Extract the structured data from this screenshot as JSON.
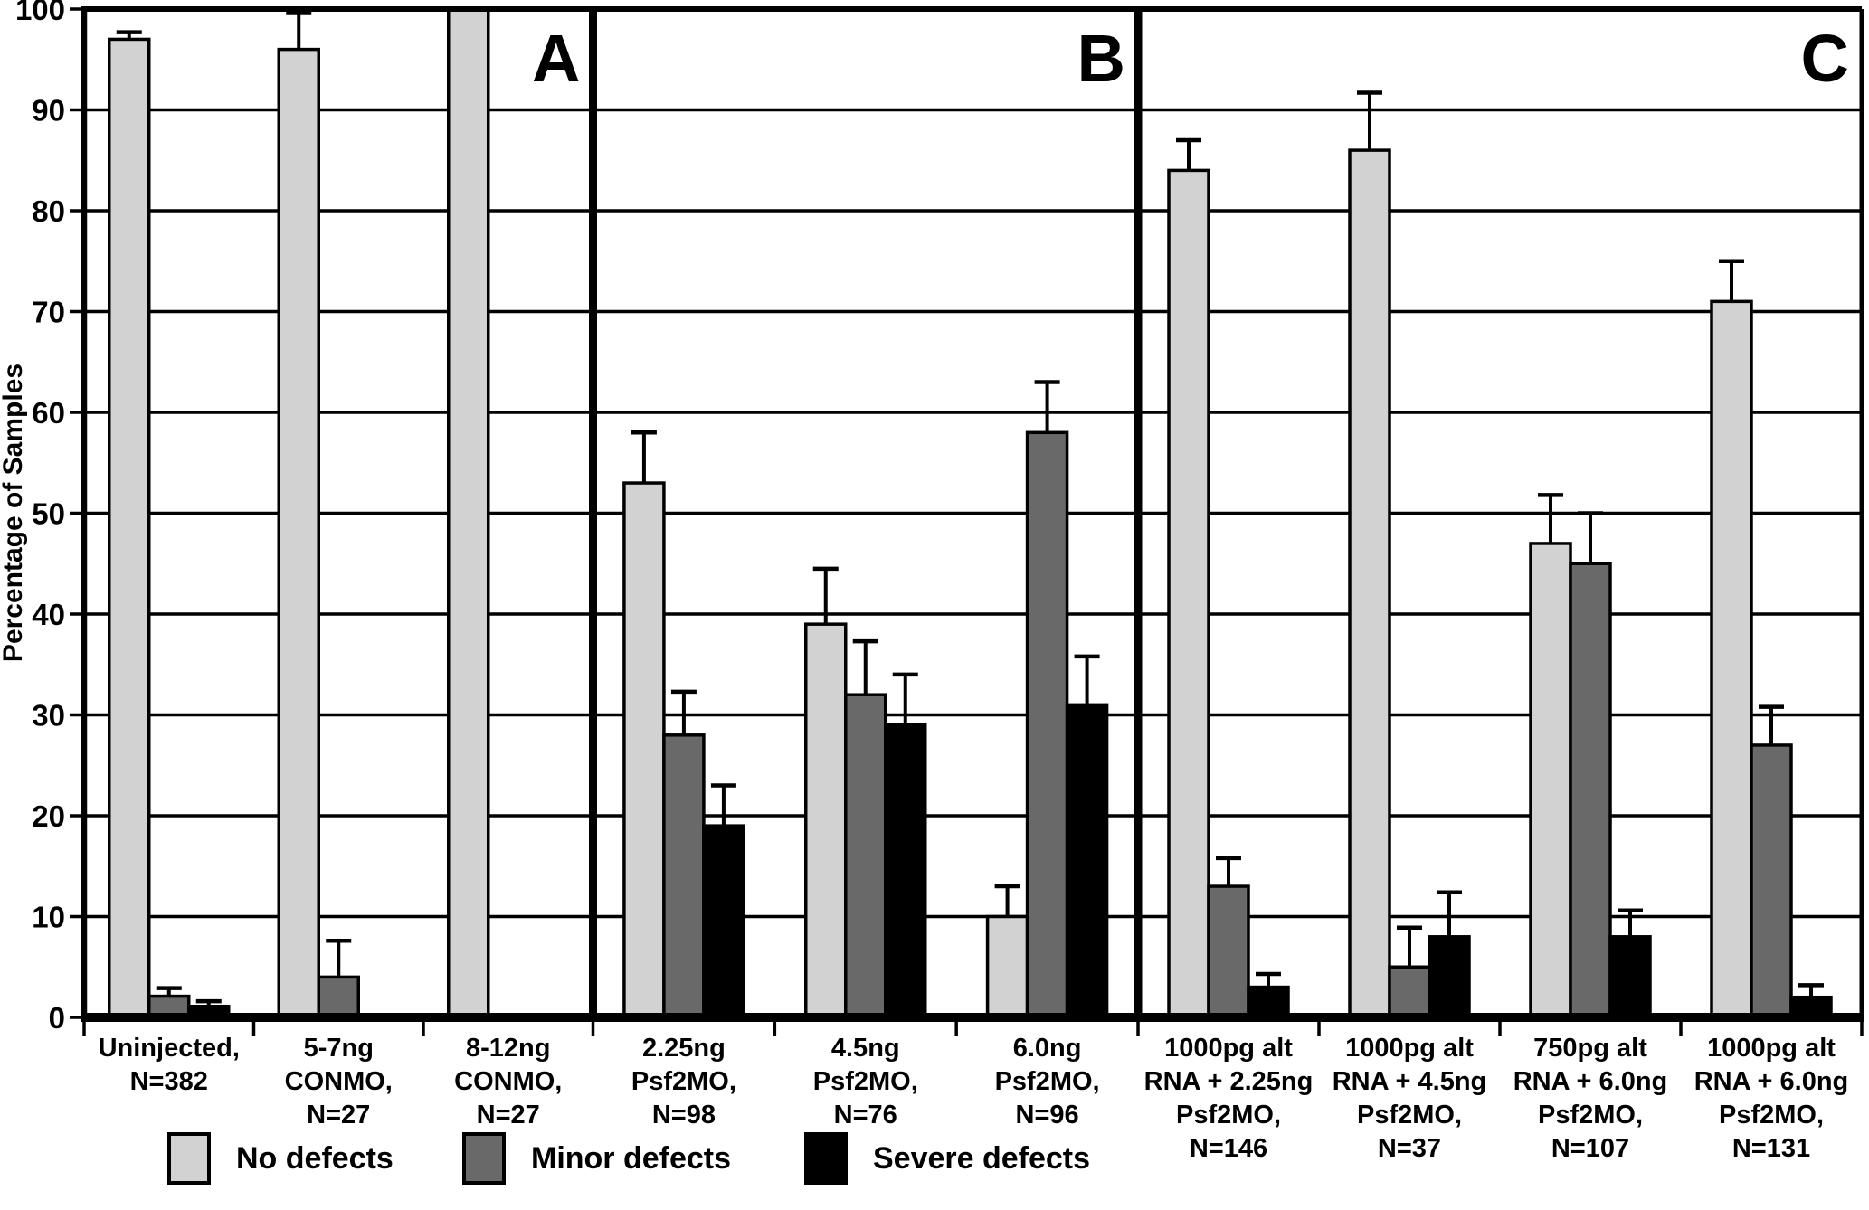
{
  "chart_data": {
    "type": "bar",
    "title": "",
    "xlabel": "",
    "ylabel": "Percentage of Samples",
    "ylim": [
      0,
      100
    ],
    "ytick_interval": 10,
    "grid": true,
    "legend_position": "bottom",
    "error_bars": "upper-only",
    "series": [
      {
        "name": "No defects",
        "color": "#d2d2d2"
      },
      {
        "name": "Minor defects",
        "color": "#696969"
      },
      {
        "name": "Severe defects",
        "color": "#000000"
      }
    ],
    "panels": [
      {
        "label": "A",
        "groups": [
          {
            "category": "Uninjected, N=382",
            "label_lines": [
              "Uninjected,",
              "N=382"
            ],
            "values": [
              97,
              2.1,
              1.1
            ],
            "errors": [
              0.7,
              0.8,
              0.5
            ]
          },
          {
            "category": "5-7ng CONMO, N=27",
            "label_lines": [
              "5-7ng",
              "CONMO,",
              "N=27"
            ],
            "values": [
              96,
              4,
              0.2
            ],
            "errors": [
              3.6,
              3.6,
              0
            ]
          },
          {
            "category": "8-12ng CONMO, N=27",
            "label_lines": [
              "8-12ng",
              "CONMO,",
              "N=27"
            ],
            "values": [
              100,
              0.2,
              0.2
            ],
            "errors": [
              0,
              0,
              0
            ]
          }
        ]
      },
      {
        "label": "B",
        "groups": [
          {
            "category": "2.25ng Psf2MO, N=98",
            "label_lines": [
              "2.25ng",
              "Psf2MO,",
              "N=98"
            ],
            "values": [
              53,
              28,
              19
            ],
            "errors": [
              5,
              4.3,
              4
            ]
          },
          {
            "category": "4.5ng Psf2MO, N=76",
            "label_lines": [
              "4.5ng",
              "Psf2MO,",
              "N=76"
            ],
            "values": [
              39,
              32,
              29
            ],
            "errors": [
              5.5,
              5.3,
              5
            ]
          },
          {
            "category": "6.0ng Psf2MO, N=96",
            "label_lines": [
              "6.0ng",
              "Psf2MO,",
              "N=96"
            ],
            "values": [
              10,
              58,
              31
            ],
            "errors": [
              3,
              5,
              4.8
            ]
          }
        ]
      },
      {
        "label": "C",
        "groups": [
          {
            "category": "1000pg alt RNA + 2.25ng Psf2MO, N=146",
            "label_lines": [
              "1000pg alt",
              "RNA + 2.25ng",
              "Psf2MO,",
              "N=146"
            ],
            "values": [
              84,
              13,
              3
            ],
            "errors": [
              3,
              2.8,
              1.3
            ]
          },
          {
            "category": "1000pg alt RNA + 4.5ng Psf2MO, N=37",
            "label_lines": [
              "1000pg alt",
              "RNA + 4.5ng",
              "Psf2MO,",
              "N=37"
            ],
            "values": [
              86,
              5,
              8
            ],
            "errors": [
              5.7,
              3.9,
              4.4
            ]
          },
          {
            "category": "750pg alt RNA + 6.0ng Psf2MO, N=107",
            "label_lines": [
              "750pg alt",
              "RNA + 6.0ng",
              "Psf2MO,",
              "N=107"
            ],
            "values": [
              47,
              45,
              8
            ],
            "errors": [
              4.8,
              5,
              2.6
            ]
          },
          {
            "category": "1000pg alt RNA + 6.0ng Psf2MO, N=131",
            "label_lines": [
              "1000pg alt",
              "RNA + 6.0ng",
              "Psf2MO,",
              "N=131"
            ],
            "values": [
              71,
              27,
              2
            ],
            "errors": [
              4,
              3.8,
              1.2
            ]
          }
        ]
      }
    ]
  }
}
